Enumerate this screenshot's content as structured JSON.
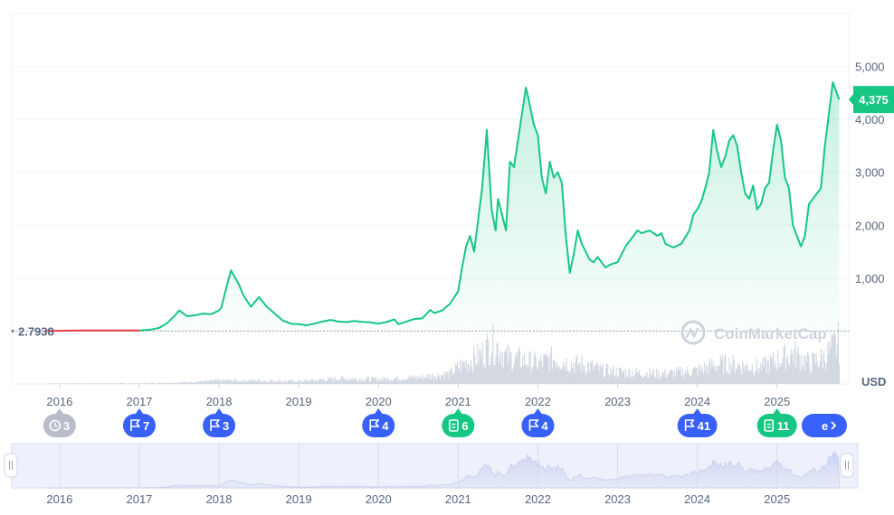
{
  "chart_data": {
    "type": "area",
    "title": "",
    "xlabel": "",
    "ylabel": "",
    "currency_label": "USD",
    "ylim": [
      -1000,
      6000
    ],
    "yticks": [
      1000,
      2000,
      3000,
      4000,
      5000
    ],
    "ytick_labels": [
      "1,000",
      "2,000",
      "3,000",
      "4,000",
      "5,000"
    ],
    "xlim": [
      2015.6,
      2025.8
    ],
    "xticks": [
      2016,
      2017,
      2018,
      2019,
      2020,
      2021,
      2022,
      2023,
      2024,
      2025
    ],
    "xtick_labels": [
      "2016",
      "2017",
      "2018",
      "2019",
      "2020",
      "2021",
      "2022",
      "2023",
      "2024",
      "2025"
    ],
    "grid": true,
    "start_price": 2.7938,
    "start_price_label": "2.7938",
    "current_price": 4375,
    "current_price_label": "4,375",
    "line_color": "#16c784",
    "start_segment_color": "#ea3943",
    "watermark": "CoinMarketCap",
    "series": [
      {
        "x": [
          2015.83,
          2016.0,
          2016.3,
          2016.6,
          2016.9,
          2017.0,
          2017.15,
          2017.25,
          2017.35,
          2017.45,
          2017.5,
          2017.6,
          2017.7,
          2017.8,
          2017.9,
          2018.0,
          2018.03,
          2018.08,
          2018.15,
          2018.25,
          2018.3,
          2018.4,
          2018.5,
          2018.6,
          2018.7,
          2018.8,
          2018.9,
          2019.0,
          2019.1,
          2019.2,
          2019.3,
          2019.4,
          2019.5,
          2019.6,
          2019.7,
          2019.8,
          2019.9,
          2020.0,
          2020.1,
          2020.2,
          2020.25,
          2020.35,
          2020.45,
          2020.55,
          2020.65,
          2020.7,
          2020.8,
          2020.9,
          2021.0,
          2021.05,
          2021.1,
          2021.15,
          2021.2,
          2021.25,
          2021.3,
          2021.36,
          2021.42,
          2021.47,
          2021.5,
          2021.55,
          2021.6,
          2021.65,
          2021.7,
          2021.75,
          2021.8,
          2021.85,
          2021.88,
          2021.95,
          2022.0,
          2022.05,
          2022.1,
          2022.15,
          2022.2,
          2022.25,
          2022.3,
          2022.35,
          2022.4,
          2022.45,
          2022.5,
          2022.55,
          2022.6,
          2022.65,
          2022.7,
          2022.75,
          2022.8,
          2022.85,
          2022.9,
          2022.95,
          2023.0,
          2023.1,
          2023.2,
          2023.25,
          2023.3,
          2023.4,
          2023.5,
          2023.55,
          2023.6,
          2023.7,
          2023.8,
          2023.9,
          2023.95,
          2024.0,
          2024.05,
          2024.1,
          2024.15,
          2024.2,
          2024.25,
          2024.3,
          2024.35,
          2024.4,
          2024.45,
          2024.5,
          2024.55,
          2024.6,
          2024.65,
          2024.7,
          2024.75,
          2024.8,
          2024.85,
          2024.9,
          2024.95,
          2025.0,
          2025.05,
          2025.1,
          2025.15,
          2025.2,
          2025.25,
          2025.3,
          2025.35,
          2025.4,
          2025.45,
          2025.5,
          2025.55,
          2025.6,
          2025.65,
          2025.7,
          2025.75,
          2025.78
        ],
        "y": [
          3,
          5,
          10,
          11,
          10,
          10,
          30,
          60,
          150,
          300,
          390,
          280,
          300,
          330,
          320,
          390,
          450,
          750,
          1150,
          880,
          690,
          460,
          640,
          460,
          330,
          200,
          140,
          130,
          110,
          140,
          180,
          210,
          180,
          170,
          190,
          175,
          165,
          140,
          170,
          220,
          130,
          180,
          230,
          240,
          400,
          340,
          390,
          520,
          750,
          1200,
          1600,
          1800,
          1500,
          2100,
          2700,
          3800,
          2300,
          1900,
          2500,
          2200,
          1900,
          3200,
          3100,
          3600,
          4100,
          4600,
          4400,
          3900,
          3700,
          2900,
          2600,
          3200,
          2900,
          3000,
          2800,
          1800,
          1100,
          1450,
          1900,
          1650,
          1500,
          1350,
          1300,
          1400,
          1300,
          1200,
          1250,
          1280,
          1300,
          1600,
          1800,
          1900,
          1850,
          1900,
          1800,
          1850,
          1650,
          1580,
          1650,
          1900,
          2200,
          2300,
          2450,
          2700,
          3000,
          3800,
          3400,
          3100,
          3300,
          3600,
          3700,
          3500,
          3000,
          2600,
          2500,
          2750,
          2300,
          2400,
          2700,
          2800,
          3400,
          3900,
          3600,
          2900,
          2700,
          2000,
          1800,
          1600,
          1800,
          2400,
          2500,
          2600,
          2700,
          3500,
          4100,
          4700,
          4500,
          4375
        ]
      }
    ],
    "volume": {
      "x": [
        2016.0,
        2016.5,
        2017.0,
        2017.5,
        2018.0,
        2018.5,
        2019.0,
        2019.5,
        2020.0,
        2020.5,
        2020.9,
        2021.0,
        2021.2,
        2021.3,
        2021.4,
        2021.5,
        2021.6,
        2021.8,
        2022.0,
        2022.2,
        2022.4,
        2022.6,
        2022.8,
        2023.0,
        2023.3,
        2023.6,
        2024.0,
        2024.2,
        2024.4,
        2024.6,
        2024.8,
        2025.0,
        2025.2,
        2025.4,
        2025.6,
        2025.75
      ],
      "values": [
        0.5,
        1,
        1,
        2,
        5,
        5,
        4,
        8,
        7,
        10,
        15,
        25,
        38,
        45,
        60,
        55,
        40,
        35,
        30,
        38,
        30,
        28,
        20,
        18,
        16,
        15,
        20,
        28,
        30,
        26,
        25,
        35,
        45,
        30,
        40,
        60
      ]
    }
  },
  "events": [
    {
      "year": "2016",
      "icon": "history-icon",
      "count": "3",
      "color": "#b8bdc9"
    },
    {
      "year": "2017",
      "icon": "flag-icon",
      "count": "7",
      "color": "#3861fb"
    },
    {
      "year": "2018",
      "icon": "flag-icon",
      "count": "3",
      "color": "#3861fb"
    },
    {
      "year": "2020",
      "icon": "flag-icon",
      "count": "4",
      "color": "#3861fb"
    },
    {
      "year": "2021",
      "icon": "document-icon",
      "count": "6",
      "color": "#16c784"
    },
    {
      "year": "2022",
      "icon": "flag-icon",
      "count": "4",
      "color": "#3861fb"
    },
    {
      "year": "2024",
      "icon": "flag-icon",
      "count": "41",
      "color": "#3861fb"
    },
    {
      "year": "2025",
      "icon": "document-icon",
      "count": "11",
      "color": "#16c784"
    }
  ],
  "more_label": "e",
  "navigator": {
    "xtick_labels": [
      "2016",
      "2017",
      "2018",
      "2019",
      "2020",
      "2021",
      "2022",
      "2023",
      "2024",
      "2025"
    ]
  }
}
